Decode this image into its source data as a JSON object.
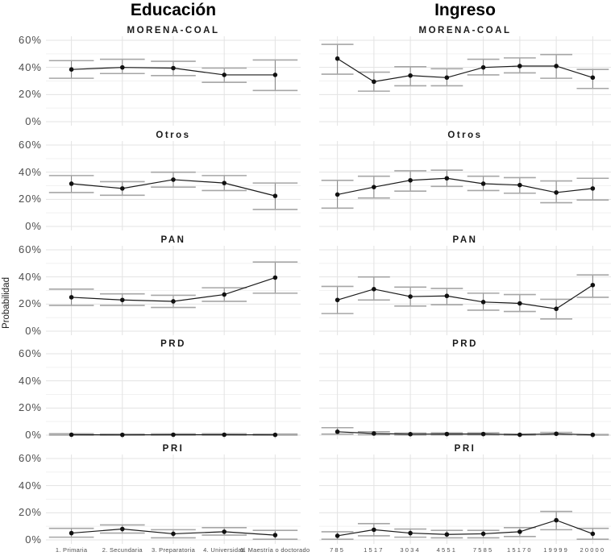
{
  "header": {
    "col_titles": [
      "Educación",
      "Ingreso"
    ]
  },
  "ylabel": "Probabilidad",
  "colors": {
    "background": "#ffffff",
    "grid_major": "#e3e3e3",
    "grid_minor": "#f1f1f1",
    "errorbar_line": "#808080",
    "errorbar_cap": "#a6a6a6",
    "data_line": "#1a1a1a",
    "point": "#111111",
    "axis_text": "#4d4d4d",
    "title_text": "#000000"
  },
  "chart_data": {
    "type": "line",
    "subtype": "faceted point-range (estimates with confidence intervals)",
    "title": "",
    "xlabel": "",
    "ylabel": "Probabilidad",
    "ylim": [
      0,
      60
    ],
    "yticks": [
      0,
      20,
      40,
      60
    ],
    "ytick_labels": [
      "0%",
      "20%",
      "40%",
      "60%"
    ],
    "grid": "major horizontal + minor horizontal + major vertical at categories",
    "legend_position": "none",
    "columns": [
      {
        "title": "Educación",
        "categories": [
          "1. Primaria",
          "2. Secundaria",
          "3. Preparatoria",
          "4. Universidad",
          "5. Maestría o doctorado"
        ]
      },
      {
        "title": "Ingreso",
        "categories": [
          "785",
          "1517",
          "3034",
          "4551",
          "7585",
          "15170",
          "19999",
          "20000"
        ]
      }
    ],
    "facets": [
      "MORENA-COAL",
      "Otros",
      "PAN",
      "PRD",
      "PRI"
    ],
    "panels": [
      {
        "column": "Educación",
        "facet": "MORENA-COAL",
        "values": [
          38.5,
          40,
          39.5,
          34.5,
          34.5
        ],
        "lower": [
          32,
          35.5,
          34,
          29,
          23
        ],
        "upper": [
          45,
          46,
          44.5,
          39.5,
          45.5
        ]
      },
      {
        "column": "Educación",
        "facet": "Otros",
        "values": [
          31.5,
          28,
          34.5,
          32,
          22.5
        ],
        "lower": [
          25,
          23,
          29,
          26.5,
          12.5
        ],
        "upper": [
          37.5,
          33,
          40,
          37.5,
          32
        ]
      },
      {
        "column": "Educación",
        "facet": "PAN",
        "values": [
          25,
          23,
          22,
          27,
          39.5
        ],
        "lower": [
          19,
          19,
          17.5,
          22,
          28
        ],
        "upper": [
          31,
          27.5,
          26.5,
          32,
          51
        ]
      },
      {
        "column": "Educación",
        "facet": "PRD",
        "values": [
          0.3,
          0.2,
          0.3,
          0.3,
          0.2
        ],
        "lower": [
          0.05,
          0.05,
          0.05,
          0.05,
          0.02
        ],
        "upper": [
          1,
          0.8,
          0.9,
          1,
          0.8
        ]
      },
      {
        "column": "Educación",
        "facet": "PRI",
        "values": [
          5,
          8,
          4.5,
          6,
          3.5
        ],
        "lower": [
          2,
          5,
          1.5,
          3.5,
          0.5
        ],
        "upper": [
          8.5,
          11,
          7.5,
          9,
          7
        ]
      },
      {
        "column": "Ingreso",
        "facet": "MORENA-COAL",
        "values": [
          46.5,
          29.5,
          34,
          32.5,
          40,
          41,
          41,
          32.5
        ],
        "lower": [
          35,
          22.5,
          26.5,
          26.5,
          34.5,
          36,
          32,
          24.5
        ],
        "upper": [
          57,
          36.5,
          40.5,
          39,
          46,
          47,
          49.5,
          38.5
        ]
      },
      {
        "column": "Ingreso",
        "facet": "Otros",
        "values": [
          23.5,
          29,
          34,
          35.5,
          31.5,
          30.5,
          25,
          28
        ],
        "lower": [
          13.5,
          21,
          26,
          29.5,
          26.5,
          24.5,
          17.5,
          19.5
        ],
        "upper": [
          34,
          37,
          41,
          41.5,
          37,
          36,
          33.5,
          35.5
        ]
      },
      {
        "column": "Ingreso",
        "facet": "PAN",
        "values": [
          23,
          31,
          25.5,
          26,
          21.5,
          20.5,
          16.5,
          34
        ],
        "lower": [
          13,
          23,
          18.5,
          19.5,
          15.5,
          14.5,
          9,
          25
        ],
        "upper": [
          33,
          40,
          32.5,
          31.5,
          28,
          27,
          23.5,
          41.5
        ]
      },
      {
        "column": "Ingreso",
        "facet": "PRD",
        "values": [
          2.5,
          1.2,
          0.7,
          0.8,
          0.8,
          0.3,
          1,
          0.2
        ],
        "lower": [
          0.8,
          0.3,
          0.1,
          0.2,
          0.2,
          0.05,
          0.3,
          0.02
        ],
        "upper": [
          5.5,
          2.5,
          1.5,
          1.7,
          1.7,
          0.8,
          2,
          0.5
        ]
      },
      {
        "column": "Ingreso",
        "facet": "PRI",
        "values": [
          3,
          7.5,
          5,
          4,
          4.5,
          6,
          14.5,
          4.5
        ],
        "lower": [
          0.5,
          3,
          2,
          1.5,
          1.5,
          2.5,
          7.5,
          0.5
        ],
        "upper": [
          6,
          12,
          8,
          7,
          7,
          9,
          21,
          8.5
        ]
      }
    ]
  }
}
